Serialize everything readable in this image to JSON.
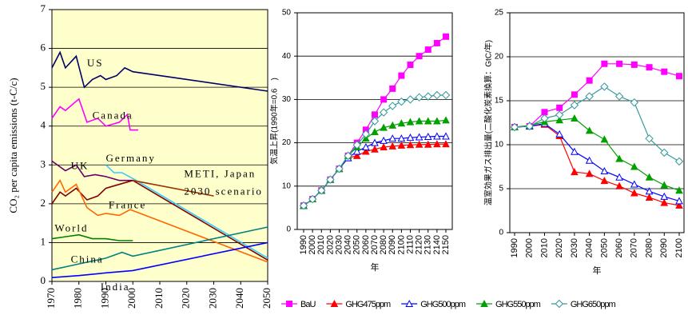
{
  "chart_data": [
    {
      "type": "line",
      "ylabel": "CO₂ per capita emissions (t-C/c)",
      "xlim": [
        1970,
        2050
      ],
      "xticks": [
        1970,
        1980,
        1990,
        2000,
        2010,
        2020,
        2030,
        2040,
        2050
      ],
      "ylim": [
        0,
        7
      ],
      "yticks": [
        0,
        1,
        2,
        3,
        4,
        5,
        6,
        7
      ],
      "grid": true,
      "background": "#ffffcc",
      "annotations": [
        "METI, Japan",
        "2030 scenario"
      ],
      "series": [
        {
          "name": "US",
          "color": "#000066",
          "x": [
            1970,
            1973,
            1975,
            1979,
            1982,
            1985,
            1988,
            1990,
            1994,
            1997,
            2000,
            2050
          ],
          "values": [
            5.5,
            5.9,
            5.5,
            5.8,
            5.0,
            5.2,
            5.3,
            5.2,
            5.3,
            5.5,
            5.4,
            4.9
          ]
        },
        {
          "name": "Canada",
          "color": "#ff00ff",
          "x": [
            1970,
            1973,
            1975,
            1980,
            1983,
            1987,
            1990,
            1995,
            1998,
            1999,
            2002
          ],
          "values": [
            4.2,
            4.5,
            4.4,
            4.7,
            4.1,
            4.2,
            4.0,
            4.1,
            4.3,
            3.9,
            3.9
          ]
        },
        {
          "name": "UK",
          "color": "#660066",
          "x": [
            1970,
            1972,
            1975,
            1979,
            1982,
            1986,
            1990,
            1995,
            2000
          ],
          "values": [
            3.1,
            3.0,
            2.85,
            3.0,
            2.7,
            2.75,
            2.7,
            2.6,
            2.6
          ]
        },
        {
          "name": "Germany",
          "color": "#33ccff",
          "x": [
            1990,
            1993,
            1996,
            2000,
            2050
          ],
          "values": [
            3.0,
            2.8,
            2.8,
            2.65,
            0.6
          ]
        },
        {
          "color": "#800000",
          "x": [
            1970,
            1973,
            1975,
            1979,
            1983,
            1987,
            1990,
            1995,
            2000,
            2050
          ],
          "values": [
            2.0,
            2.3,
            2.2,
            2.4,
            2.1,
            2.2,
            2.4,
            2.5,
            2.6,
            0.55
          ]
        },
        {
          "color": "#993300",
          "x": [
            2000,
            2030
          ],
          "values": [
            2.6,
            2.2
          ]
        },
        {
          "name": "France",
          "color": "#ff6600",
          "x": [
            1970,
            1973,
            1975,
            1979,
            1983,
            1987,
            1990,
            1995,
            1999,
            2050
          ],
          "values": [
            2.3,
            2.6,
            2.3,
            2.5,
            1.9,
            1.7,
            1.75,
            1.7,
            1.85,
            0.5
          ]
        },
        {
          "name": "World",
          "color": "#008000",
          "x": [
            1970,
            1975,
            1980,
            1985,
            1990,
            1995,
            2000
          ],
          "values": [
            1.1,
            1.15,
            1.2,
            1.1,
            1.1,
            1.05,
            1.05
          ]
        },
        {
          "name": "China",
          "color": "#008080",
          "x": [
            1970,
            1980,
            1990,
            1996,
            2000,
            2050
          ],
          "values": [
            0.3,
            0.45,
            0.6,
            0.75,
            0.65,
            1.4
          ]
        },
        {
          "name": "India",
          "color": "#0000ff",
          "x": [
            1970,
            1980,
            1990,
            2000,
            2050
          ],
          "values": [
            0.1,
            0.15,
            0.22,
            0.28,
            1.0
          ]
        }
      ]
    },
    {
      "type": "line",
      "ylabel": "気温上昇(1990年=0.6　)",
      "xlabel": "年",
      "categories": [
        "1990",
        "2000",
        "2010",
        "2020",
        "2030",
        "2040",
        "2050",
        "2060",
        "2070",
        "2080",
        "2090",
        "2100",
        "2110",
        "2120",
        "2130",
        "2140",
        "2150"
      ],
      "ylim": [
        0,
        50
      ],
      "yticks": [
        0,
        10,
        20,
        30,
        40,
        50
      ],
      "grid": true,
      "series": [
        {
          "name": "BaU",
          "color": "#ff00ff",
          "marker": "square",
          "values": [
            5.5,
            7,
            9,
            11.5,
            14,
            17,
            20,
            23,
            26.5,
            30,
            32.5,
            35.5,
            38,
            40,
            41.5,
            43,
            44.5
          ]
        },
        {
          "name": "GHG475ppm",
          "color": "#ff0000",
          "marker": "triangle",
          "values": [
            5.5,
            7,
            9,
            11.5,
            14,
            16.5,
            17,
            18,
            18.5,
            19,
            19.2,
            19.4,
            19.5,
            19.6,
            19.6,
            19.7,
            19.7
          ]
        },
        {
          "name": "GHG500ppm",
          "color": "#0000ff",
          "marker": "triangle-open",
          "values": [
            5.5,
            7,
            9,
            11.5,
            14,
            16.5,
            18,
            19,
            20,
            20.5,
            21,
            21,
            21.2,
            21.3,
            21.4,
            21.5,
            21.5
          ]
        },
        {
          "name": "GHG550ppm",
          "color": "#00a000",
          "marker": "triangle",
          "values": [
            5.5,
            7,
            9,
            11.5,
            14,
            17,
            19,
            21,
            22.5,
            23.5,
            24,
            24.5,
            24.8,
            25,
            25,
            25,
            25.2
          ]
        },
        {
          "name": "GHG650ppm",
          "color": "#339999",
          "marker": "diamond-open",
          "values": [
            5.5,
            7,
            9,
            11.5,
            14,
            17,
            19.5,
            22,
            25,
            27,
            28.5,
            29.5,
            30,
            30.5,
            30.7,
            31,
            31
          ]
        }
      ]
    },
    {
      "type": "line",
      "ylabel": "温室効果ガス排出量(二酸化炭素換算：GtC/年)",
      "xlabel": "年",
      "categories": [
        "1990",
        "2000",
        "2010",
        "2020",
        "2030",
        "2040",
        "2050",
        "2060",
        "2070",
        "2080",
        "2090",
        "2100"
      ],
      "ylim": [
        0,
        25
      ],
      "yticks": [
        0,
        5,
        10,
        15,
        20,
        25
      ],
      "grid": true,
      "series": [
        {
          "color": "#ff00ff",
          "marker": "square",
          "values": [
            12,
            12.1,
            13.7,
            14.2,
            15.7,
            17.3,
            19.2,
            19.2,
            19.1,
            18.8,
            18.3,
            17.8
          ]
        },
        {
          "color": "#ff0000",
          "marker": "triangle",
          "values": [
            12,
            12.1,
            12.3,
            11,
            6.9,
            6.7,
            5.9,
            5.3,
            4.5,
            4,
            3.4,
            3.1
          ]
        },
        {
          "color": "#0000ff",
          "marker": "triangle-open",
          "values": [
            12,
            12.1,
            12.4,
            11.2,
            9.2,
            8.2,
            7,
            6.3,
            5.5,
            4.7,
            4.1,
            3.6
          ]
        },
        {
          "color": "#00a000",
          "marker": "triangle",
          "values": [
            12,
            12.2,
            12.6,
            12.8,
            13,
            11.6,
            10.6,
            8.4,
            7.5,
            6.3,
            5.4,
            4.8
          ]
        },
        {
          "color": "#339999",
          "marker": "diamond-open",
          "values": [
            12,
            12.1,
            13,
            13.4,
            14.5,
            15.5,
            16.6,
            15.5,
            14.8,
            10.7,
            9.1,
            8.1
          ]
        }
      ]
    }
  ]
}
